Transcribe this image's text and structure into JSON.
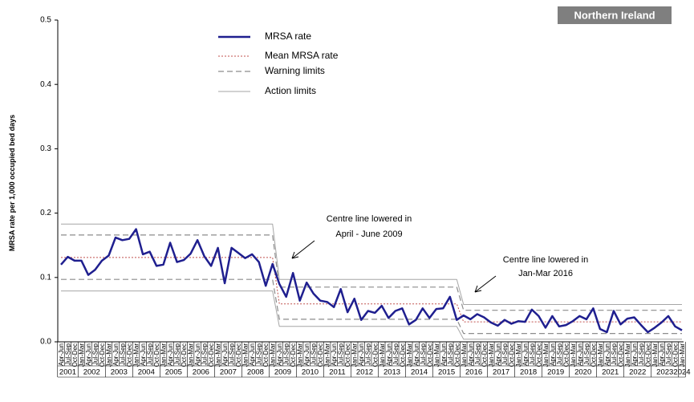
{
  "chart_data": {
    "type": "line",
    "badge": "Northern Ireland",
    "y_label": "MRSA rate per 1,000 occupied  bed days",
    "ylim": [
      0,
      0.5
    ],
    "yticks": [
      {
        "value": 0,
        "label": "0.0"
      },
      0.1,
      0.2,
      0.3,
      0.4,
      0.5
    ],
    "categories": [
      "Apr-Jun",
      "Jul-Sep",
      "Oct-Dec",
      "Jan-Mar",
      "Apr-Jun",
      "Jul-Sep",
      "Oct-Dec",
      "Jan-Mar",
      "Apr-Jun",
      "Jul-Sep",
      "Oct-Dec",
      "Jan-Mar",
      "Apr-Jun",
      "Jul-Sep",
      "Oct-Dec",
      "Jan-Mar",
      "Apr-Jun",
      "Jul-Sep",
      "Oct-Dec",
      "Jan-Mar",
      "Apr-Jun",
      "Jul-Sep",
      "Oct-Dec",
      "Jan-Mar",
      "Apr-Jun",
      "Jul-Sep",
      "Oct-Dec",
      "Jan-Mar",
      "Apr-Jun",
      "Jul-Sep",
      "Oct-Dec",
      "Jan-Mar",
      "Apr-Jun",
      "Jul-Sep",
      "Oct-Dec",
      "Jan-Mar",
      "Apr-Jun",
      "Jul-Sep",
      "Oct-Dec",
      "Jan-Mar",
      "Apr-Jun",
      "Jul-Sep",
      "Oct-Dec",
      "Jan-Mar",
      "Apr-Jun",
      "Jul-Sep",
      "Oct-Dec",
      "Jan-Mar",
      "Apr-Jun",
      "Jul-Sep",
      "Oct-Dec",
      "Jan-Mar",
      "Apr-Jun",
      "Jul-Sep",
      "Oct-Dec",
      "Jan-Mar",
      "Apr-Jun",
      "Jul-Sep",
      "Oct-Dec",
      "Jan-Mar",
      "Apr-Jun",
      "Jul-Sep",
      "Oct-Dec",
      "Jan-Mar",
      "Apr-Jun",
      "Jul-Sep",
      "Oct-Dec",
      "Jan-Mar",
      "Apr-Jun",
      "Jul-Sep",
      "Oct-Dec",
      "Jan-Mar",
      "Apr-Jun",
      "Jul-Sep",
      "Oct-Dec",
      "Jan-Mar",
      "Apr-Jun",
      "Jul-Sep",
      "Oct-Dec",
      "Jan-Mar",
      "Apr-Jun",
      "Jul-Sep",
      "Oct-Dec",
      "Jan-Mar",
      "Apr-Jun",
      "Jul-Sep",
      "Oct-Dec",
      "Jan-Mar",
      "Apr-Jun",
      "Jul-Sep",
      "Oct-Dec",
      "Jan-Mar"
    ],
    "years": [
      "2001",
      "2002",
      "2003",
      "2004",
      "2005",
      "2006",
      "2007",
      "2008",
      "2009",
      "2010",
      "2011",
      "2012",
      "2013",
      "2014",
      "2015",
      "2016",
      "2017",
      "2018",
      "2019",
      "2020",
      "2021",
      "2022",
      "2023",
      "2024"
    ],
    "series": [
      {
        "name": "MRSA rate",
        "color": "#1f1f8f",
        "style": "solid",
        "values": [
          0.12,
          0.132,
          0.126,
          0.126,
          0.104,
          0.112,
          0.126,
          0.134,
          0.162,
          0.158,
          0.16,
          0.175,
          0.136,
          0.14,
          0.118,
          0.12,
          0.154,
          0.124,
          0.127,
          0.137,
          0.158,
          0.133,
          0.118,
          0.146,
          0.091,
          0.146,
          0.138,
          0.13,
          0.136,
          0.124,
          0.087,
          0.121,
          0.09,
          0.07,
          0.107,
          0.064,
          0.092,
          0.075,
          0.064,
          0.062,
          0.054,
          0.082,
          0.046,
          0.067,
          0.034,
          0.048,
          0.045,
          0.056,
          0.037,
          0.048,
          0.052,
          0.027,
          0.034,
          0.052,
          0.037,
          0.051,
          0.052,
          0.07,
          0.034,
          0.041,
          0.035,
          0.043,
          0.038,
          0.03,
          0.025,
          0.034,
          0.028,
          0.032,
          0.031,
          0.05,
          0.04,
          0.022,
          0.04,
          0.024,
          0.026,
          0.032,
          0.04,
          0.035,
          0.052,
          0.02,
          0.015,
          0.048,
          0.027,
          0.036,
          0.038,
          0.026,
          0.015,
          0.022,
          0.03,
          0.04,
          0.024,
          0.018
        ]
      },
      {
        "name": "Mean MRSA rate",
        "color": "#c0504d",
        "style": "dotted",
        "values": [
          0.131,
          0.131,
          0.131,
          0.131,
          0.131,
          0.131,
          0.131,
          0.131,
          0.131,
          0.131,
          0.131,
          0.131,
          0.131,
          0.131,
          0.131,
          0.131,
          0.131,
          0.131,
          0.131,
          0.131,
          0.131,
          0.131,
          0.131,
          0.131,
          0.131,
          0.131,
          0.131,
          0.131,
          0.131,
          0.131,
          0.131,
          0.131,
          0.059,
          0.059,
          0.059,
          0.059,
          0.059,
          0.059,
          0.059,
          0.059,
          0.059,
          0.059,
          0.059,
          0.059,
          0.059,
          0.059,
          0.059,
          0.059,
          0.059,
          0.059,
          0.059,
          0.059,
          0.059,
          0.059,
          0.059,
          0.059,
          0.059,
          0.059,
          0.059,
          0.031,
          0.031,
          0.031,
          0.031,
          0.031,
          0.031,
          0.031,
          0.031,
          0.031,
          0.031,
          0.031,
          0.031,
          0.031,
          0.031,
          0.031,
          0.031,
          0.031,
          0.031,
          0.031,
          0.031,
          0.031,
          0.031,
          0.031,
          0.031,
          0.031,
          0.031,
          0.031,
          0.031,
          0.031,
          0.031,
          0.031,
          0.031,
          0.031
        ]
      },
      {
        "name": "Warning limits",
        "color": "#8c8c8c",
        "style": "dashed",
        "upper": [
          0.166,
          0.166,
          0.166,
          0.166,
          0.166,
          0.166,
          0.166,
          0.166,
          0.166,
          0.166,
          0.166,
          0.166,
          0.166,
          0.166,
          0.166,
          0.166,
          0.166,
          0.166,
          0.166,
          0.166,
          0.166,
          0.166,
          0.166,
          0.166,
          0.166,
          0.166,
          0.166,
          0.166,
          0.166,
          0.166,
          0.166,
          0.166,
          0.085,
          0.085,
          0.085,
          0.085,
          0.085,
          0.085,
          0.085,
          0.085,
          0.085,
          0.085,
          0.085,
          0.085,
          0.085,
          0.085,
          0.085,
          0.085,
          0.085,
          0.085,
          0.085,
          0.085,
          0.085,
          0.085,
          0.085,
          0.085,
          0.085,
          0.085,
          0.085,
          0.049,
          0.049,
          0.049,
          0.049,
          0.049,
          0.049,
          0.049,
          0.049,
          0.049,
          0.049,
          0.049,
          0.049,
          0.049,
          0.049,
          0.049,
          0.049,
          0.049,
          0.049,
          0.049,
          0.049,
          0.049,
          0.049,
          0.049,
          0.049,
          0.049,
          0.049,
          0.049,
          0.049,
          0.049,
          0.049,
          0.049,
          0.049,
          0.049
        ],
        "lower": [
          0.097,
          0.097,
          0.097,
          0.097,
          0.097,
          0.097,
          0.097,
          0.097,
          0.097,
          0.097,
          0.097,
          0.097,
          0.097,
          0.097,
          0.097,
          0.097,
          0.097,
          0.097,
          0.097,
          0.097,
          0.097,
          0.097,
          0.097,
          0.097,
          0.097,
          0.097,
          0.097,
          0.097,
          0.097,
          0.097,
          0.097,
          0.097,
          0.035,
          0.035,
          0.035,
          0.035,
          0.035,
          0.035,
          0.035,
          0.035,
          0.035,
          0.035,
          0.035,
          0.035,
          0.035,
          0.035,
          0.035,
          0.035,
          0.035,
          0.035,
          0.035,
          0.035,
          0.035,
          0.035,
          0.035,
          0.035,
          0.035,
          0.035,
          0.035,
          0.013,
          0.013,
          0.013,
          0.013,
          0.013,
          0.013,
          0.013,
          0.013,
          0.013,
          0.013,
          0.013,
          0.013,
          0.013,
          0.013,
          0.013,
          0.013,
          0.013,
          0.013,
          0.013,
          0.013,
          0.013,
          0.013,
          0.013,
          0.013,
          0.013,
          0.013,
          0.013,
          0.013,
          0.013,
          0.013,
          0.013,
          0.013,
          0.013
        ]
      },
      {
        "name": "Action limits",
        "color": "#a6a6a6",
        "style": "thin",
        "upper": [
          0.183,
          0.183,
          0.183,
          0.183,
          0.183,
          0.183,
          0.183,
          0.183,
          0.183,
          0.183,
          0.183,
          0.183,
          0.183,
          0.183,
          0.183,
          0.183,
          0.183,
          0.183,
          0.183,
          0.183,
          0.183,
          0.183,
          0.183,
          0.183,
          0.183,
          0.183,
          0.183,
          0.183,
          0.183,
          0.183,
          0.183,
          0.183,
          0.097,
          0.097,
          0.097,
          0.097,
          0.097,
          0.097,
          0.097,
          0.097,
          0.097,
          0.097,
          0.097,
          0.097,
          0.097,
          0.097,
          0.097,
          0.097,
          0.097,
          0.097,
          0.097,
          0.097,
          0.097,
          0.097,
          0.097,
          0.097,
          0.097,
          0.097,
          0.097,
          0.058,
          0.058,
          0.058,
          0.058,
          0.058,
          0.058,
          0.058,
          0.058,
          0.058,
          0.058,
          0.058,
          0.058,
          0.058,
          0.058,
          0.058,
          0.058,
          0.058,
          0.058,
          0.058,
          0.058,
          0.058,
          0.058,
          0.058,
          0.058,
          0.058,
          0.058,
          0.058,
          0.058,
          0.058,
          0.058,
          0.058,
          0.058,
          0.058
        ],
        "lower": [
          0.079,
          0.079,
          0.079,
          0.079,
          0.079,
          0.079,
          0.079,
          0.079,
          0.079,
          0.079,
          0.079,
          0.079,
          0.079,
          0.079,
          0.079,
          0.079,
          0.079,
          0.079,
          0.079,
          0.079,
          0.079,
          0.079,
          0.079,
          0.079,
          0.079,
          0.079,
          0.079,
          0.079,
          0.079,
          0.079,
          0.079,
          0.079,
          0.024,
          0.024,
          0.024,
          0.024,
          0.024,
          0.024,
          0.024,
          0.024,
          0.024,
          0.024,
          0.024,
          0.024,
          0.024,
          0.024,
          0.024,
          0.024,
          0.024,
          0.024,
          0.024,
          0.024,
          0.024,
          0.024,
          0.024,
          0.024,
          0.024,
          0.024,
          0.024,
          0.004,
          0.004,
          0.004,
          0.004,
          0.004,
          0.004,
          0.004,
          0.004,
          0.004,
          0.004,
          0.004,
          0.004,
          0.004,
          0.004,
          0.004,
          0.004,
          0.004,
          0.004,
          0.004,
          0.004,
          0.004,
          0.004,
          0.004,
          0.004,
          0.004,
          0.004,
          0.004,
          0.004,
          0.004,
          0.004,
          0.004,
          0.004,
          0.004
        ]
      }
    ],
    "annotations": [
      {
        "lines": [
          "Centre line lowered in",
          "April  - June 2009"
        ]
      },
      {
        "lines": [
          "Centre line lowered in",
          "Jan-Mar 2016"
        ]
      }
    ]
  }
}
